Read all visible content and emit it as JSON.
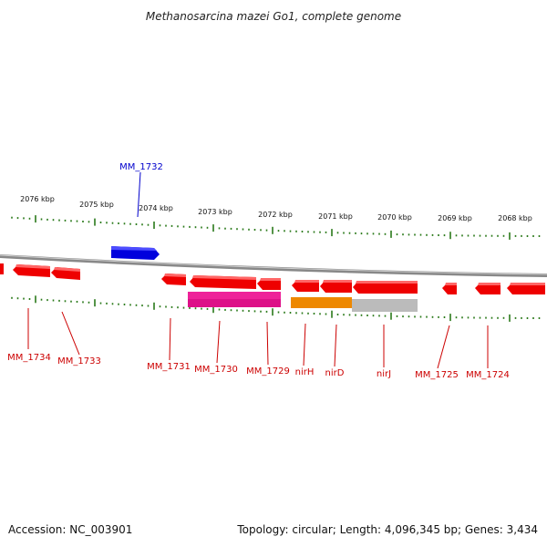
{
  "title": "Methanosarcina mazei Go1, complete genome",
  "colors": {
    "forward_gene": "#0000dd",
    "reverse_gene": "#ee0000",
    "reverse_gene_label": "#cc0000",
    "forward_gene_label": "#0000cc",
    "rna_feature_1": "#ee2299",
    "rna_feature_2": "#ee8800",
    "rna_feature_3": "#bbbbbb",
    "tick": "#2a7a1a",
    "backbone": "#888888"
  },
  "scale": {
    "kbp_labels": [
      "2076 kbp",
      "2075 kbp",
      "2074 kbp",
      "2073 kbp",
      "2072 kbp",
      "2071 kbp",
      "2070 kbp",
      "2069 kbp",
      "2068 kbp"
    ]
  },
  "genes": {
    "forward": [
      {
        "label": "MM_1732"
      }
    ],
    "reverse": [
      {
        "label": "MM_1734"
      },
      {
        "label": "MM_1733"
      },
      {
        "label": "MM_1731"
      },
      {
        "label": "MM_1730"
      },
      {
        "label": "MM_1729"
      },
      {
        "label": "nirH"
      },
      {
        "label": "nirD"
      },
      {
        "label": "nirJ"
      },
      {
        "label": "MM_1725"
      },
      {
        "label": "MM_1724"
      }
    ]
  },
  "footer": {
    "accession": "Accession: NC_003901",
    "summary": "Topology: circular; Length: 4,096,345 bp; Genes: 3,434"
  }
}
